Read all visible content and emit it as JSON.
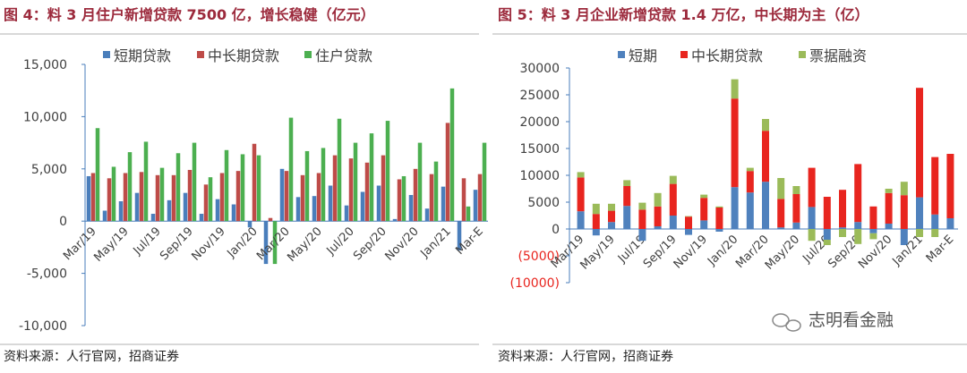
{
  "chart_data": [
    {
      "type": "bar",
      "mode": "grouped",
      "title": "图 4：料 3 月住户新增贷款 7500 亿，增长稳健（亿元）",
      "source": "资料来源：人行官网，招商证券",
      "categories": [
        "Mar/19",
        null,
        "May/19",
        null,
        "Jul/19",
        null,
        "Sep/19",
        null,
        "Nov/19",
        null,
        "Jan/20",
        null,
        "Mar/20",
        null,
        "May/20",
        null,
        "Jul/20",
        null,
        "Sep/20",
        null,
        "Nov/20",
        null,
        "Jan/21",
        null,
        "Mar-E"
      ],
      "series": [
        {
          "name": "短期贷款",
          "color": "#4a7ebb",
          "values": [
            4300,
            1000,
            1900,
            2700,
            700,
            2000,
            2700,
            700,
            2100,
            1600,
            -600,
            -4100,
            5000,
            2300,
            2400,
            3400,
            1500,
            2800,
            3400,
            200,
            2500,
            1200,
            3300,
            -2800,
            3000
          ]
        },
        {
          "name": "中长期贷款",
          "color": "#be4b48",
          "values": [
            4600,
            4100,
            4600,
            4700,
            4400,
            4400,
            4900,
            3500,
            4600,
            4800,
            7400,
            300,
            4800,
            4400,
            4600,
            6300,
            6000,
            5600,
            6300,
            4000,
            5000,
            4500,
            9400,
            4100,
            4500
          ]
        },
        {
          "name": "住户贷款",
          "color": "#4caf50",
          "values": [
            8900,
            5200,
            6600,
            7600,
            5100,
            6500,
            7500,
            4200,
            6800,
            6400,
            6300,
            -4100,
            9900,
            6700,
            7000,
            9800,
            7500,
            8400,
            9600,
            4300,
            7500,
            5700,
            12700,
            1400,
            7500
          ]
        }
      ],
      "ylim": [
        -10000,
        15000
      ],
      "yticks": [
        {
          "value": 15000,
          "label": "15,000"
        },
        {
          "value": 10000,
          "label": "10,000"
        },
        {
          "value": 5000,
          "label": "5,000"
        },
        0,
        {
          "value": -5000,
          "label": "-5,000"
        },
        {
          "value": -10000,
          "label": "-10,000"
        }
      ],
      "grid": false
    },
    {
      "type": "bar",
      "mode": "stacked",
      "title": "图 5：料 3 月企业新增贷款 1.4 万亿，中长期为主（亿）",
      "source": "资料来源：人行官网，招商证券",
      "categories": [
        "Mar/19",
        null,
        "May/19",
        null,
        "Jul/19",
        null,
        "Sep/19",
        null,
        "Nov/19",
        null,
        "Jan/20",
        null,
        "Mar/20",
        null,
        "May/20",
        null,
        "Jul/20",
        null,
        "Sep/20",
        null,
        "Nov/20",
        null,
        "Jan/21",
        null,
        "Mar-E"
      ],
      "series": [
        {
          "name": "短期",
          "color": "#4f81bd",
          "values": [
            3300,
            -1200,
            1300,
            4300,
            -2200,
            500,
            2500,
            -1100,
            1600,
            -500,
            7800,
            6800,
            8800,
            300,
            1200,
            4100,
            -2000,
            300,
            1300,
            -800,
            1000,
            -3000,
            5900,
            2700,
            2000
          ]
        },
        {
          "name": "中长期贷款",
          "color": "#e8251f",
          "values": [
            6300,
            2800,
            2100,
            3700,
            3600,
            3700,
            5900,
            2300,
            4200,
            4000,
            16500,
            4000,
            9500,
            5300,
            5300,
            7300,
            6000,
            7000,
            10800,
            4200,
            5700,
            6300,
            20400,
            10700,
            12000
          ]
        },
        {
          "name": "票据融资",
          "color": "#9bbb59",
          "values": [
            1000,
            1900,
            1300,
            1100,
            1300,
            2500,
            1500,
            100,
            600,
            200,
            3600,
            600,
            2200,
            3900,
            1500,
            -2200,
            -1000,
            -1500,
            -2800,
            -1100,
            800,
            2500,
            -1500,
            -1500,
            0
          ]
        }
      ],
      "ylim": [
        -10000,
        30000
      ],
      "yticks": [
        30000,
        25000,
        20000,
        15000,
        10000,
        5000,
        0,
        {
          "value": -5000,
          "label": "(5000)"
        },
        {
          "value": -10000,
          "label": "(10000)"
        }
      ],
      "grid": false
    }
  ],
  "watermark": "志明看金融"
}
